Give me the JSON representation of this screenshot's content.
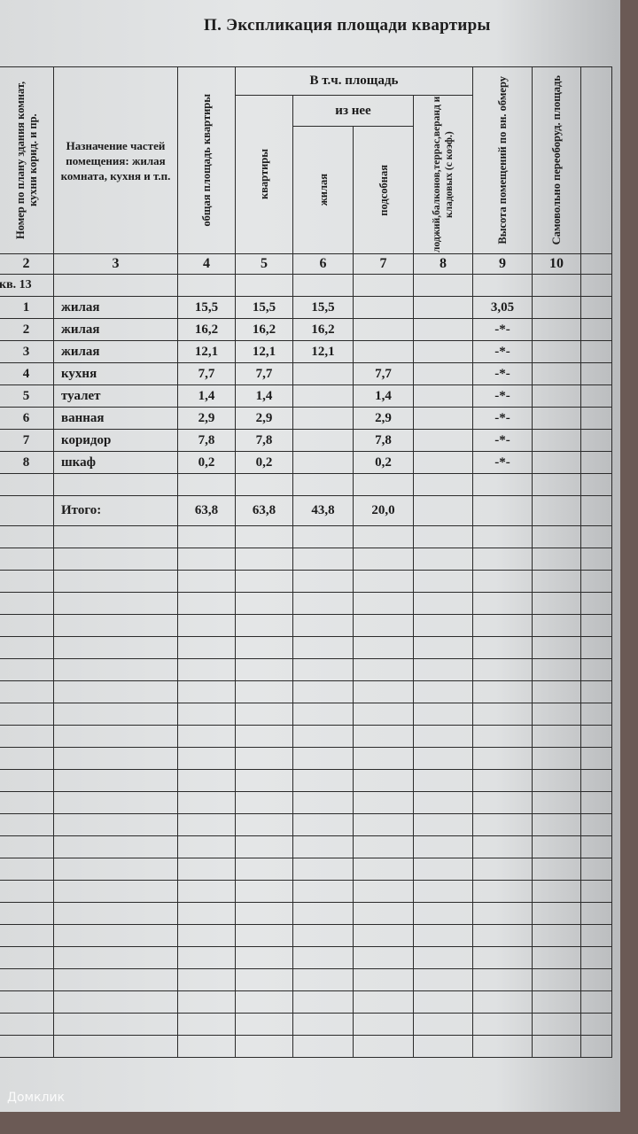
{
  "document": {
    "title": "П. Экспликация площади квартиры",
    "headers": {
      "col2": "Номер по плану здания комнат, кухни корид. и пр.",
      "col3": "Назначение частей помещения: жилая комната, кухня и т.п.",
      "col4": "общая площадь квартиры",
      "group": "В т.ч. площадь",
      "col5": "квартиры",
      "subgroup": "из нее",
      "col6": "жилая",
      "col7": "подсобная",
      "col8": "лоджий,балконов,террас,веранд и кладовых (с коэф.)",
      "col9": "Высота помещений по вн. обмеру",
      "col10": "Самовольно переоборуд. площадь"
    },
    "column_numbers": [
      "2",
      "3",
      "4",
      "5",
      "6",
      "7",
      "8",
      "9",
      "10"
    ],
    "apartment_label": "кв. 13",
    "rows": [
      {
        "no": "1",
        "name": "жилая",
        "total": "15,5",
        "apt": "15,5",
        "living": "15,5",
        "aux": "",
        "loggia": "",
        "height": "3,05"
      },
      {
        "no": "2",
        "name": "жилая",
        "total": "16,2",
        "apt": "16,2",
        "living": "16,2",
        "aux": "",
        "loggia": "",
        "height": "-*-"
      },
      {
        "no": "3",
        "name": "жилая",
        "total": "12,1",
        "apt": "12,1",
        "living": "12,1",
        "aux": "",
        "loggia": "",
        "height": "-*-"
      },
      {
        "no": "4",
        "name": "кухня",
        "total": "7,7",
        "apt": "7,7",
        "living": "",
        "aux": "7,7",
        "loggia": "",
        "height": "-*-"
      },
      {
        "no": "5",
        "name": "туалет",
        "total": "1,4",
        "apt": "1,4",
        "living": "",
        "aux": "1,4",
        "loggia": "",
        "height": "-*-"
      },
      {
        "no": "6",
        "name": "ванная",
        "total": "2,9",
        "apt": "2,9",
        "living": "",
        "aux": "2,9",
        "loggia": "",
        "height": "-*-"
      },
      {
        "no": "7",
        "name": "коридор",
        "total": "7,8",
        "apt": "7,8",
        "living": "",
        "aux": "7,8",
        "loggia": "",
        "height": "-*-"
      },
      {
        "no": "8",
        "name": "шкаф",
        "total": "0,2",
        "apt": "0,2",
        "living": "",
        "aux": "0,2",
        "loggia": "",
        "height": "-*-"
      }
    ],
    "total": {
      "label": "Итого:",
      "total": "63,8",
      "apt": "63,8",
      "living": "43,8",
      "aux": "20,0"
    }
  },
  "watermark": "Домклик"
}
